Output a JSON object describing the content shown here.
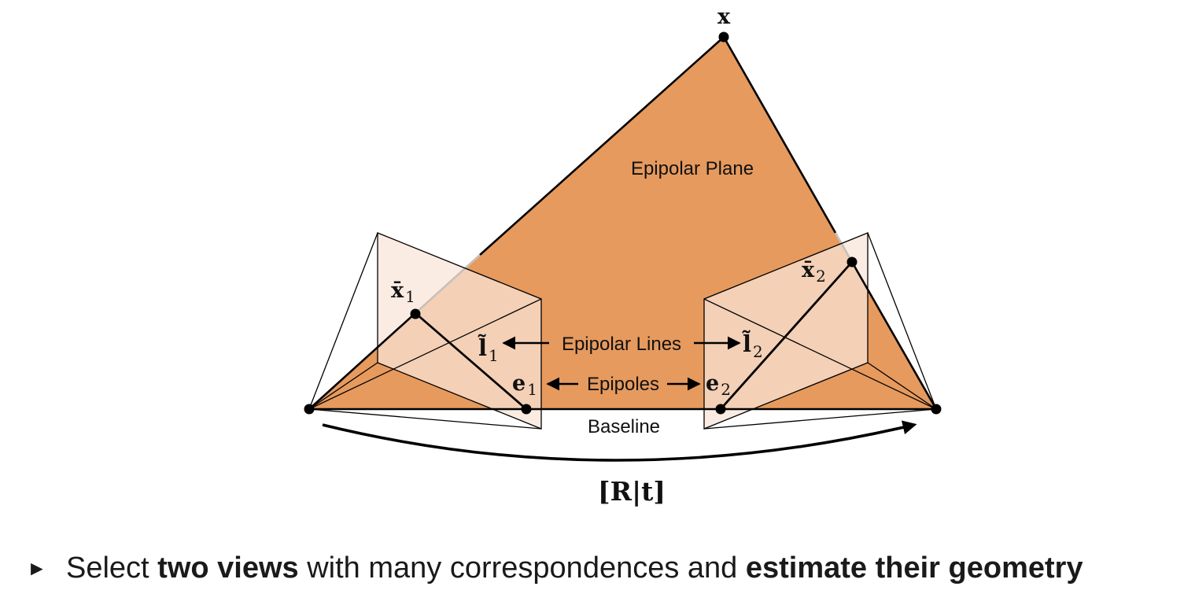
{
  "diagram": {
    "colors": {
      "plane_fill": "#E69A5E",
      "image_plane_tint": "#F8E5D8",
      "stroke": "#000000"
    },
    "labels": {
      "point_x": "x",
      "epipolar_plane": "Epipolar Plane",
      "x1_letter": "x̄",
      "x1_sub": "1",
      "x2_letter": "x̄",
      "x2_sub": "2",
      "l1_letter": "l̃",
      "l1_sub": "1",
      "l2_letter": "l̃",
      "l2_sub": "2",
      "e1_letter": "e",
      "e1_sub": "1",
      "e2_letter": "e",
      "e2_sub": "2",
      "epipolar_lines": "Epipolar Lines",
      "epipoles": "Epipoles",
      "baseline": "Baseline",
      "transform": "[R|t]"
    }
  },
  "bullet": {
    "marker": "►",
    "part1": "Select ",
    "bold1": "two views",
    "part2": " with many correspondences and ",
    "bold2": "estimate their geometry"
  }
}
